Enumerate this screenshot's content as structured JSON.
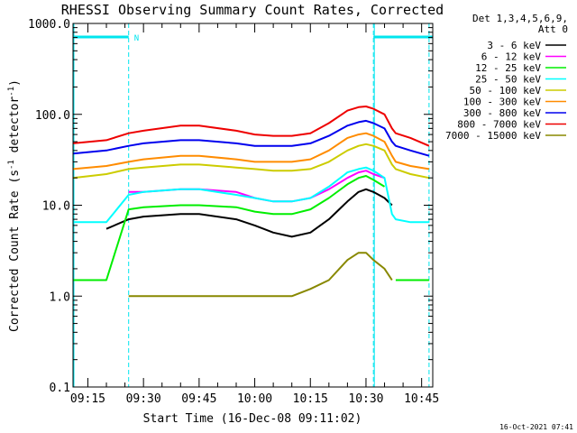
{
  "chart_data": {
    "type": "line",
    "title": "RHESSI Observing Summary Count Rates, Corrected",
    "xlabel": "Start Time (16-Dec-08 09:11:02)",
    "ylabel_main": "Corrected Count Rate (s",
    "ylabel_sup1": "-1",
    "ylabel_mid": " detector",
    "ylabel_sup2": "-1",
    "ylabel_end": ")",
    "y_scale": "log",
    "ylim": [
      0.1,
      1000
    ],
    "xlim_minutes": [
      "09:11",
      "10:48"
    ],
    "x_ticks": [
      "09:15",
      "09:30",
      "09:45",
      "10:00",
      "10:15",
      "10:30",
      "10:45"
    ],
    "y_ticks": [
      "1000.0",
      "100.0",
      "10.0",
      "1.0",
      "0.1"
    ],
    "grid": false,
    "legend_position": "right",
    "legend_header": [
      "Det 1,3,4,5,6,9,",
      "Att 0"
    ],
    "timestamp": "16-Oct-2021 07:41",
    "night_marker": "N",
    "colors": {
      "background": "#ffffff",
      "axis": "#000000",
      "cyan": "#00e5ee"
    },
    "overlays": {
      "night_intervals": [
        [
          "09:11",
          "09:26"
        ],
        [
          "10:32",
          "10:48"
        ]
      ],
      "dashed_lines": [
        "09:26",
        "10:32",
        "10:47"
      ],
      "solid_lines": [
        "09:11",
        "10:32"
      ]
    },
    "x_times": [
      "09:11",
      "09:20",
      "09:26",
      "09:30",
      "09:40",
      "09:45",
      "09:55",
      "10:00",
      "10:05",
      "10:10",
      "10:15",
      "10:20",
      "10:25",
      "10:28",
      "10:30",
      "10:32",
      "10:35",
      "10:37",
      "10:38",
      "10:42",
      "10:47"
    ],
    "series": [
      {
        "name": "3 - 6 keV",
        "color": "#000000",
        "values": [
          null,
          5.5,
          7,
          7.5,
          8,
          8,
          7,
          6,
          5,
          4.5,
          5,
          7,
          11,
          14,
          15,
          14,
          12,
          10,
          null,
          null,
          null
        ]
      },
      {
        "name": "6 - 12 keV",
        "color": "#ff00ff",
        "values": [
          null,
          null,
          14,
          14,
          15,
          15,
          14,
          12,
          11,
          11,
          12,
          15,
          20,
          23,
          24,
          22,
          20,
          null,
          null,
          null,
          null
        ]
      },
      {
        "name": "12 - 25 keV",
        "color": "#00ee00",
        "values": [
          1.5,
          1.5,
          9,
          9.5,
          10,
          10,
          9.5,
          8.5,
          8,
          8,
          9,
          12,
          17,
          20,
          21,
          19,
          16,
          null,
          1.5,
          1.5,
          1.5
        ]
      },
      {
        "name": "25 - 50 keV",
        "color": "#00ffff",
        "values": [
          6.5,
          6.5,
          13,
          14,
          15,
          15,
          13,
          12,
          11,
          11,
          12,
          16,
          23,
          25,
          26,
          24,
          20,
          8,
          7,
          6.5,
          6.5
        ]
      },
      {
        "name": "50 - 100 keV",
        "color": "#cccc00",
        "values": [
          20,
          22,
          25,
          26,
          28,
          28,
          26,
          25,
          24,
          24,
          25,
          30,
          40,
          45,
          47,
          45,
          40,
          28,
          25,
          22,
          20
        ]
      },
      {
        "name": "100 - 300 keV",
        "color": "#ff8c00",
        "values": [
          25,
          27,
          30,
          32,
          35,
          35,
          32,
          30,
          30,
          30,
          32,
          40,
          55,
          60,
          62,
          58,
          50,
          35,
          30,
          27,
          25
        ]
      },
      {
        "name": "300 - 800 keV",
        "color": "#0000ee",
        "values": [
          37,
          40,
          45,
          48,
          52,
          52,
          48,
          45,
          45,
          45,
          48,
          58,
          75,
          82,
          85,
          80,
          70,
          50,
          45,
          40,
          35
        ]
      },
      {
        "name": "800 - 7000 keV",
        "color": "#ee0000",
        "values": [
          48,
          52,
          62,
          66,
          75,
          75,
          66,
          60,
          58,
          58,
          62,
          80,
          110,
          120,
          122,
          115,
          100,
          70,
          62,
          55,
          45
        ]
      },
      {
        "name": "7000 - 15000 keV",
        "color": "#888800",
        "values": [
          null,
          null,
          1,
          1,
          1,
          1,
          1,
          1,
          1,
          1,
          1.2,
          1.5,
          2.5,
          3,
          3,
          2.5,
          2,
          1.5,
          null,
          null,
          null
        ]
      }
    ]
  }
}
